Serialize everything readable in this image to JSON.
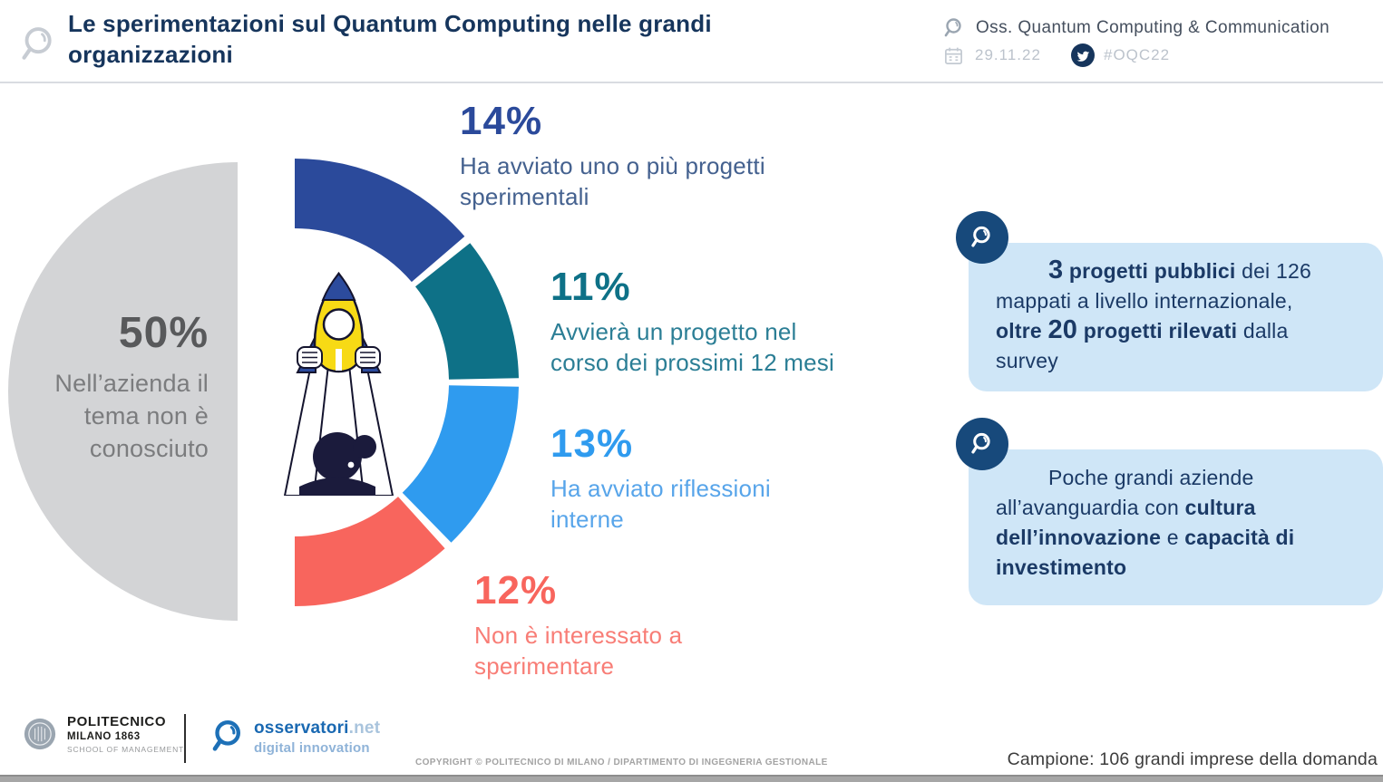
{
  "header": {
    "title_lines": [
      "Le sperimentazioni sul Quantum Computing nelle grandi",
      "organizzazioni"
    ],
    "observatory": "Oss. Quantum Computing & Communication",
    "date": "29.11.22",
    "hashtag": "#OQC22"
  },
  "chart_data": {
    "type": "pie",
    "title": "Le sperimentazioni sul Quantum Computing nelle grandi organizzazioni",
    "unit": "%",
    "legend_position": "around-donut",
    "segments": [
      {
        "label": "Nell’azienda il tema non è conosciuto",
        "value": 50,
        "pct_label": "50%",
        "label_lines": [
          "Nell’azienda il",
          "tema non è",
          "conosciuto"
        ],
        "color": "#d3d4d6",
        "text_color": "#58595b",
        "desc_color": "#7b7c7e"
      },
      {
        "label": "Ha avviato uno o più progetti sperimentali",
        "value": 14,
        "pct_label": "14%",
        "label_lines": [
          "Ha avviato uno o più progetti",
          "sperimentali"
        ],
        "color": "#2b4a9b",
        "text_color": "#2b4a9b",
        "desc_color": "#44618f"
      },
      {
        "label": "Avvierà un progetto nel corso dei prossimi 12 mesi",
        "value": 11,
        "pct_label": "11%",
        "label_lines": [
          "Avvierà un progetto nel",
          "corso dei prossimi 12 mesi"
        ],
        "color": "#0e7187",
        "text_color": "#0e7187",
        "desc_color": "#2b7e95"
      },
      {
        "label": "Ha avviato riflessioni interne",
        "value": 13,
        "pct_label": "13%",
        "label_lines": [
          "Ha avviato riflessioni",
          "interne"
        ],
        "color": "#2f9bef",
        "text_color": "#2f9bef",
        "desc_color": "#58a5ea"
      },
      {
        "label": "Non è interessato a sperimentare",
        "value": 12,
        "pct_label": "12%",
        "label_lines": [
          "Non è interessato a",
          "sperimentare"
        ],
        "color": "#f8655d",
        "text_color": "#f8655d",
        "desc_color": "#f87d76"
      }
    ]
  },
  "callouts": [
    {
      "lines": [
        [
          {
            "t": "3",
            "b": true,
            "big": true
          },
          {
            "t": " progetti pubblici",
            "b": true
          },
          {
            "t": " dei 126",
            "b": false
          }
        ],
        [
          {
            "t": "mappati a livello internazionale,",
            "b": false
          }
        ],
        [
          {
            "t": "oltre ",
            "b": true
          },
          {
            "t": "20",
            "b": true,
            "big": true
          },
          {
            "t": " progetti rilevati",
            "b": true
          },
          {
            "t": " dalla",
            "b": false
          }
        ],
        [
          {
            "t": "survey",
            "b": false
          }
        ]
      ],
      "accent_color": "#17497b",
      "background_color": "#cfe6f7",
      "text_color": "#1b3a66"
    },
    {
      "lines": [
        [
          {
            "t": "Poche grandi aziende",
            "b": false
          }
        ],
        [
          {
            "t": "all’avanguardia con ",
            "b": false
          },
          {
            "t": "cultura",
            "b": true
          }
        ],
        [
          {
            "t": "dell’innovazione",
            "b": true
          },
          {
            "t": " e ",
            "b": false
          },
          {
            "t": "capacità di",
            "b": true
          }
        ],
        [
          {
            "t": "investimento",
            "b": true
          }
        ]
      ],
      "accent_color": "#17497b",
      "background_color": "#cfe6f7",
      "text_color": "#1b3a66"
    }
  ],
  "footer": {
    "politecnico": {
      "line1": "POLITECNICO",
      "line2": "MILANO 1863",
      "line3": "SCHOOL OF MANAGEMENT"
    },
    "osservatori": {
      "brand": "osservatori",
      "brand_suffix": ".net",
      "tagline": "digital innovation"
    },
    "copyright": "COPYRIGHT © POLITECNICO DI MILANO / DIPARTIMENTO DI INGEGNERIA GESTIONALE",
    "sample": "Campione: 106 grandi imprese della domanda"
  }
}
